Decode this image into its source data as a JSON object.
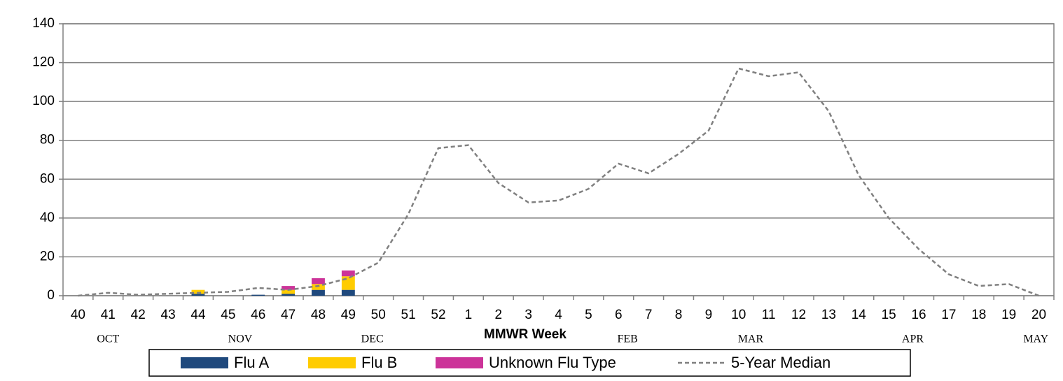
{
  "chart_data": {
    "type": "stacked_bar_line",
    "x_label": "MMWR Week",
    "categories": [
      "40",
      "41",
      "42",
      "43",
      "44",
      "45",
      "46",
      "47",
      "48",
      "49",
      "50",
      "51",
      "52",
      "1",
      "2",
      "3",
      "4",
      "5",
      "6",
      "7",
      "8",
      "9",
      "10",
      "11",
      "12",
      "13",
      "14",
      "15",
      "16",
      "17",
      "18",
      "19",
      "20"
    ],
    "months": [
      "OCT",
      "NOV",
      "DEC",
      "FEB",
      "MAR",
      "APR",
      "MAY"
    ],
    "series": [
      {
        "name": "Flu A",
        "color": "#1f497d",
        "kind": "bar",
        "values": [
          0,
          0,
          0,
          0,
          1,
          0,
          0.5,
          1,
          3,
          3,
          0,
          0,
          0,
          0,
          0,
          0,
          0,
          0,
          0,
          0,
          0,
          0,
          0,
          0,
          0,
          0,
          0,
          0,
          0,
          0,
          0,
          0,
          0
        ]
      },
      {
        "name": "Flu B",
        "color": "#ffcc00",
        "kind": "bar",
        "values": [
          0,
          0,
          0,
          0,
          2,
          0,
          0,
          2,
          3,
          7,
          0,
          0,
          0,
          0,
          0,
          0,
          0,
          0,
          0,
          0,
          0,
          0,
          0,
          0,
          0,
          0,
          0,
          0,
          0,
          0,
          0,
          0,
          0
        ]
      },
      {
        "name": "Unknown Flu Type",
        "color": "#cc3399",
        "kind": "bar",
        "values": [
          0,
          0,
          0,
          0,
          0,
          0,
          0,
          2,
          3,
          3,
          0,
          0,
          0,
          0,
          0,
          0,
          0,
          0,
          0,
          0,
          0,
          0,
          0,
          0,
          0,
          0,
          0,
          0,
          0,
          0,
          0,
          0,
          0
        ]
      },
      {
        "name": "5-Year Median",
        "color": "#808080",
        "kind": "line",
        "values": [
          0,
          1.5,
          0.5,
          1,
          1.5,
          2,
          4,
          3,
          5,
          9,
          17,
          42,
          76,
          77.5,
          58,
          48,
          49,
          55,
          68,
          63,
          73,
          85,
          117,
          113,
          115,
          95,
          62,
          40,
          24,
          11,
          5,
          6,
          0
        ]
      }
    ],
    "ylim": [
      0,
      140
    ],
    "yticks": [
      0,
      20,
      40,
      60,
      80,
      100,
      120,
      140
    ],
    "grid": true
  }
}
